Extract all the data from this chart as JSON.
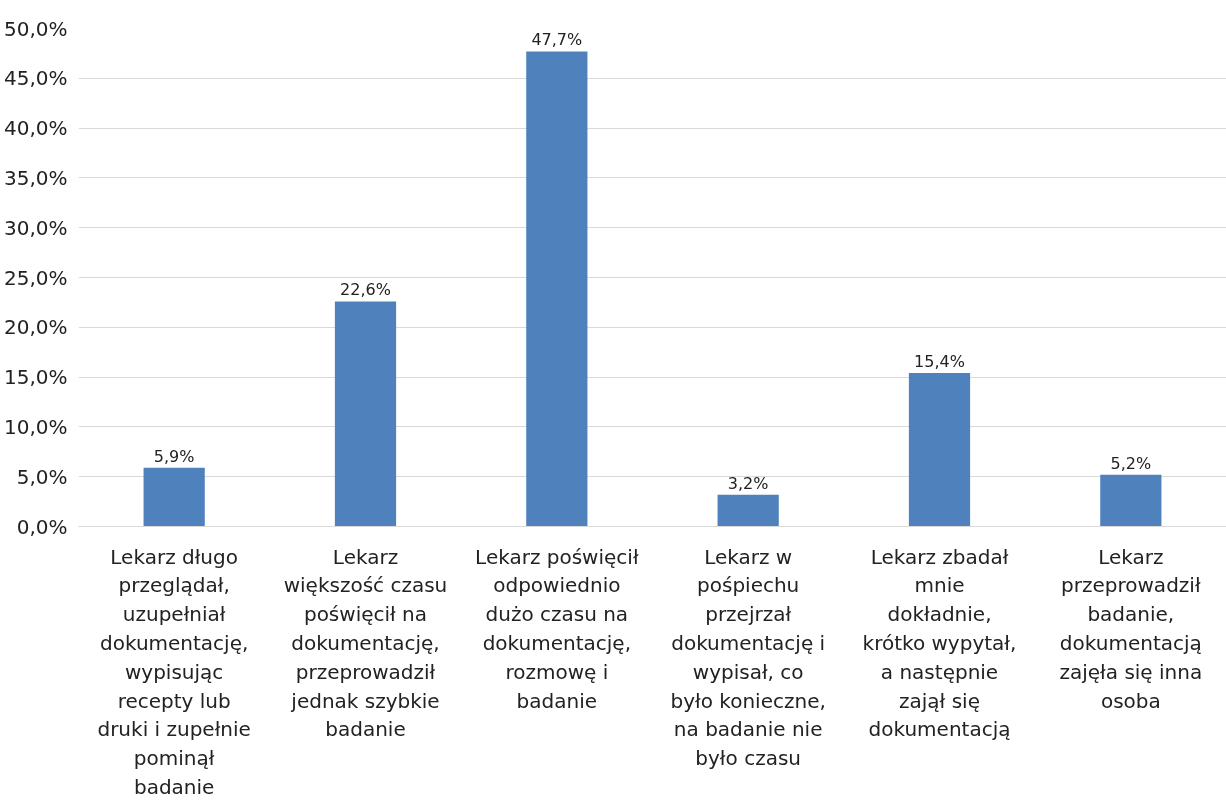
{
  "chart_data": {
    "type": "bar",
    "categories": [
      "Lekarz długo\nprzeglądał,\nuzupełniał\ndokumentację,\nwypisując\nrecepty lub\ndruki i zupełnie\npominął\nbadanie",
      "Lekarz\nwiększość czasu\npoświęcił na\ndokumentację,\nprzeprowadził\njednak szybkie\nbadanie",
      "Lekarz poświęcił\nodpowiednio\ndużo czasu na\ndokumentację,\nrozmowę i\nbadanie",
      "Lekarz w\npośpiechu\nprzejrzał\ndokumentację i\nwypisał, co\nbyło konieczne,\nna badanie nie\nbyło czasu",
      "Lekarz zbadał\nmnie\ndokładnie,\nkrótko wypytał,\na następnie\nzajął się\ndokumentacją",
      "Lekarz\nprzeprowadził\nbadanie,\ndokumentacją\nzajęła się inna\nosoba"
    ],
    "values": [
      5.9,
      22.6,
      47.7,
      3.2,
      15.4,
      5.2
    ],
    "value_labels": [
      "5,9%",
      "22,6%",
      "47,7%",
      "3,2%",
      "15,4%",
      "5,2%"
    ],
    "color": "#4f81bd",
    "ylim": [
      0,
      50
    ],
    "yticks": [
      {
        "value": 0,
        "label": "0,0%"
      },
      {
        "value": 5,
        "label": "5,0%"
      },
      {
        "value": 10,
        "label": "10,0%"
      },
      {
        "value": 15,
        "label": "15,0%"
      },
      {
        "value": 20,
        "label": "20,0%"
      },
      {
        "value": 25,
        "label": "25,0%"
      },
      {
        "value": 30,
        "label": "30,0%"
      },
      {
        "value": 35,
        "label": "35,0%"
      },
      {
        "value": 40,
        "label": "40,0%"
      },
      {
        "value": 45,
        "label": "45,0%"
      },
      {
        "value": 50,
        "label": "50,0%"
      }
    ],
    "grid": "y"
  }
}
